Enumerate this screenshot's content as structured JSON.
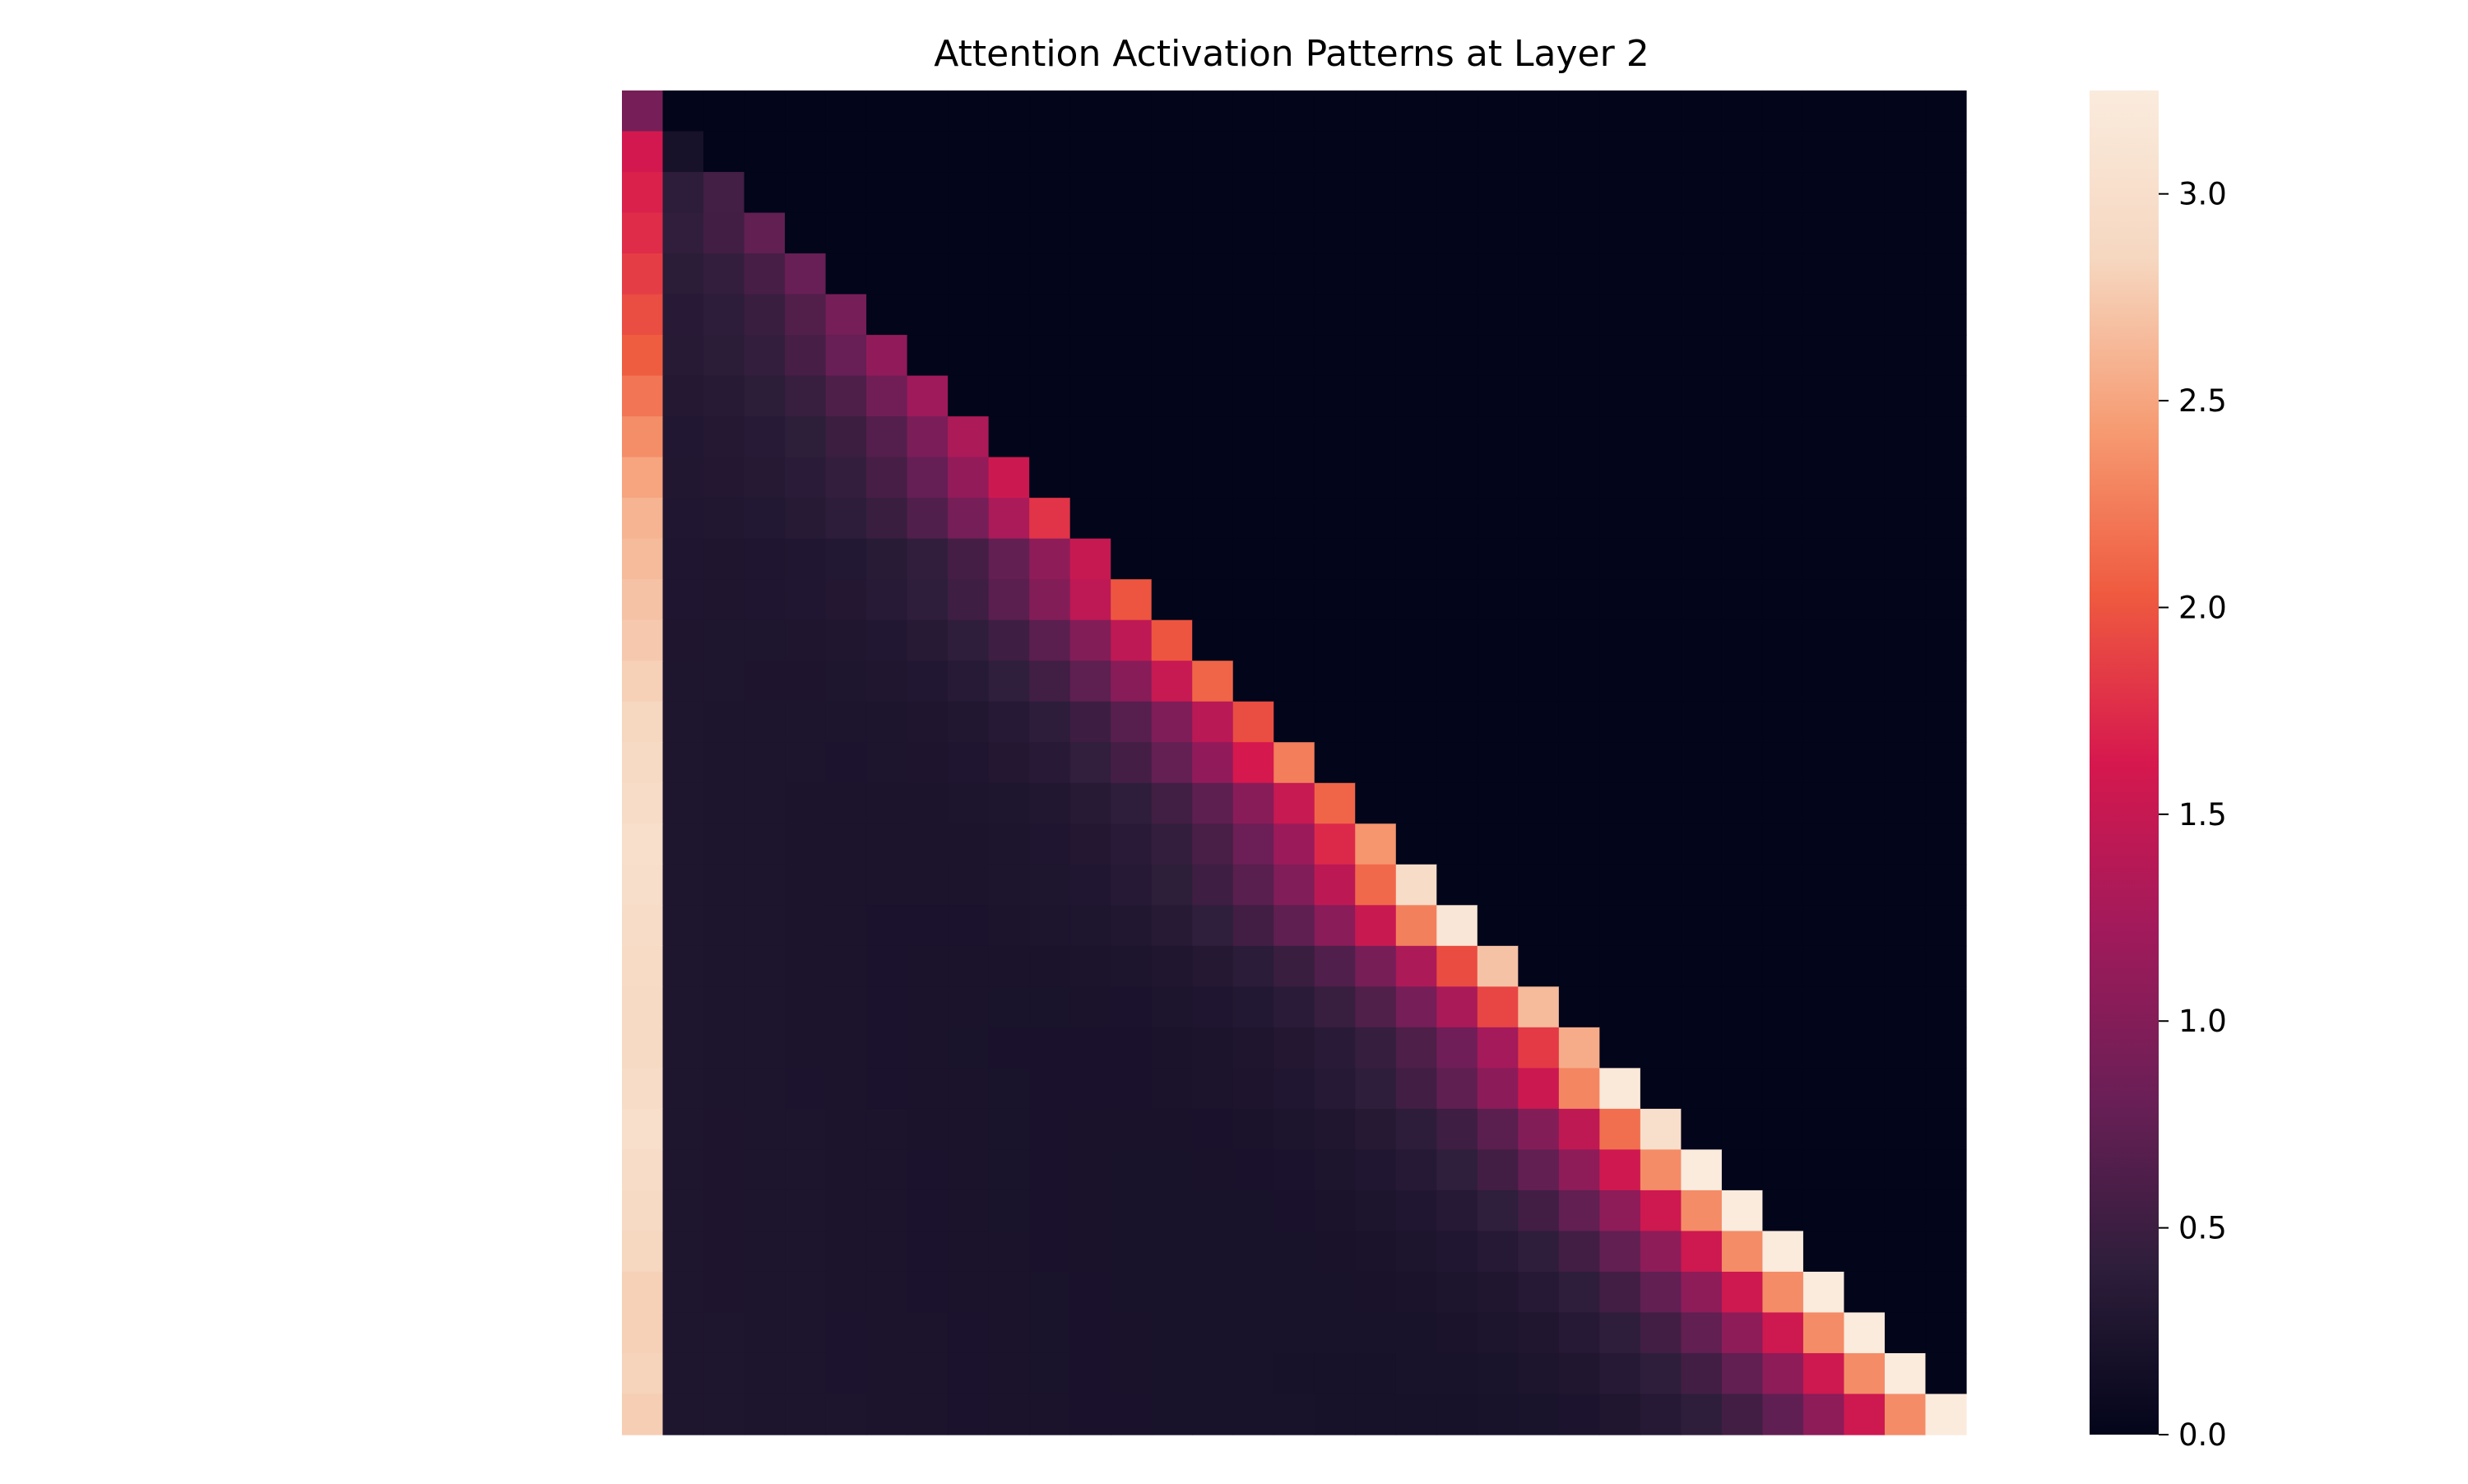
{
  "chart_data": {
    "type": "heatmap",
    "title": "Attention Activation Patterns at Layer 2",
    "xlabel": "",
    "ylabel": "",
    "n_rows": 33,
    "n_cols": 33,
    "value_range": [
      0.0,
      3.25
    ],
    "masked_upper_triangle_value": 0.0,
    "first_column_values": [
      0.9,
      1.6,
      1.68,
      1.75,
      1.85,
      1.95,
      2.05,
      2.2,
      2.35,
      2.5,
      2.6,
      2.65,
      2.7,
      2.75,
      2.8,
      2.85,
      2.9,
      2.95,
      3.0,
      2.98,
      2.95,
      2.92,
      2.9,
      2.9,
      2.95,
      3.0,
      2.95,
      2.9,
      2.85,
      2.8,
      2.8,
      2.82,
      2.78
    ],
    "diagonal_values": [
      0.9,
      0.2,
      0.55,
      0.75,
      0.8,
      0.9,
      1.1,
      1.2,
      1.3,
      1.55,
      1.8,
      1.5,
      2.0,
      2.0,
      2.1,
      1.95,
      2.25,
      2.1,
      2.4,
      2.95,
      3.15,
      2.7,
      2.65,
      2.55,
      3.2,
      3.0,
      3.25,
      3.25,
      3.25,
      3.25,
      3.25,
      3.25,
      3.25
    ],
    "off_diagonal_profile": "values rise toward the diagonal; columns far left of the diagonal decay to about 0.15-0.3",
    "colormap": [
      "#03051a",
      "#2e1e3b",
      "#6a1f56",
      "#a11a5b",
      "#d6184e",
      "#ef5a3f",
      "#f69c73",
      "#f6d7c0",
      "#faebdd"
    ],
    "colorbar": {
      "ticks": [
        "0.0",
        "0.5",
        "1.0",
        "1.5",
        "2.0",
        "2.5",
        "3.0"
      ],
      "tick_values": [
        0.0,
        0.5,
        1.0,
        1.5,
        2.0,
        2.5,
        3.0
      ]
    }
  }
}
